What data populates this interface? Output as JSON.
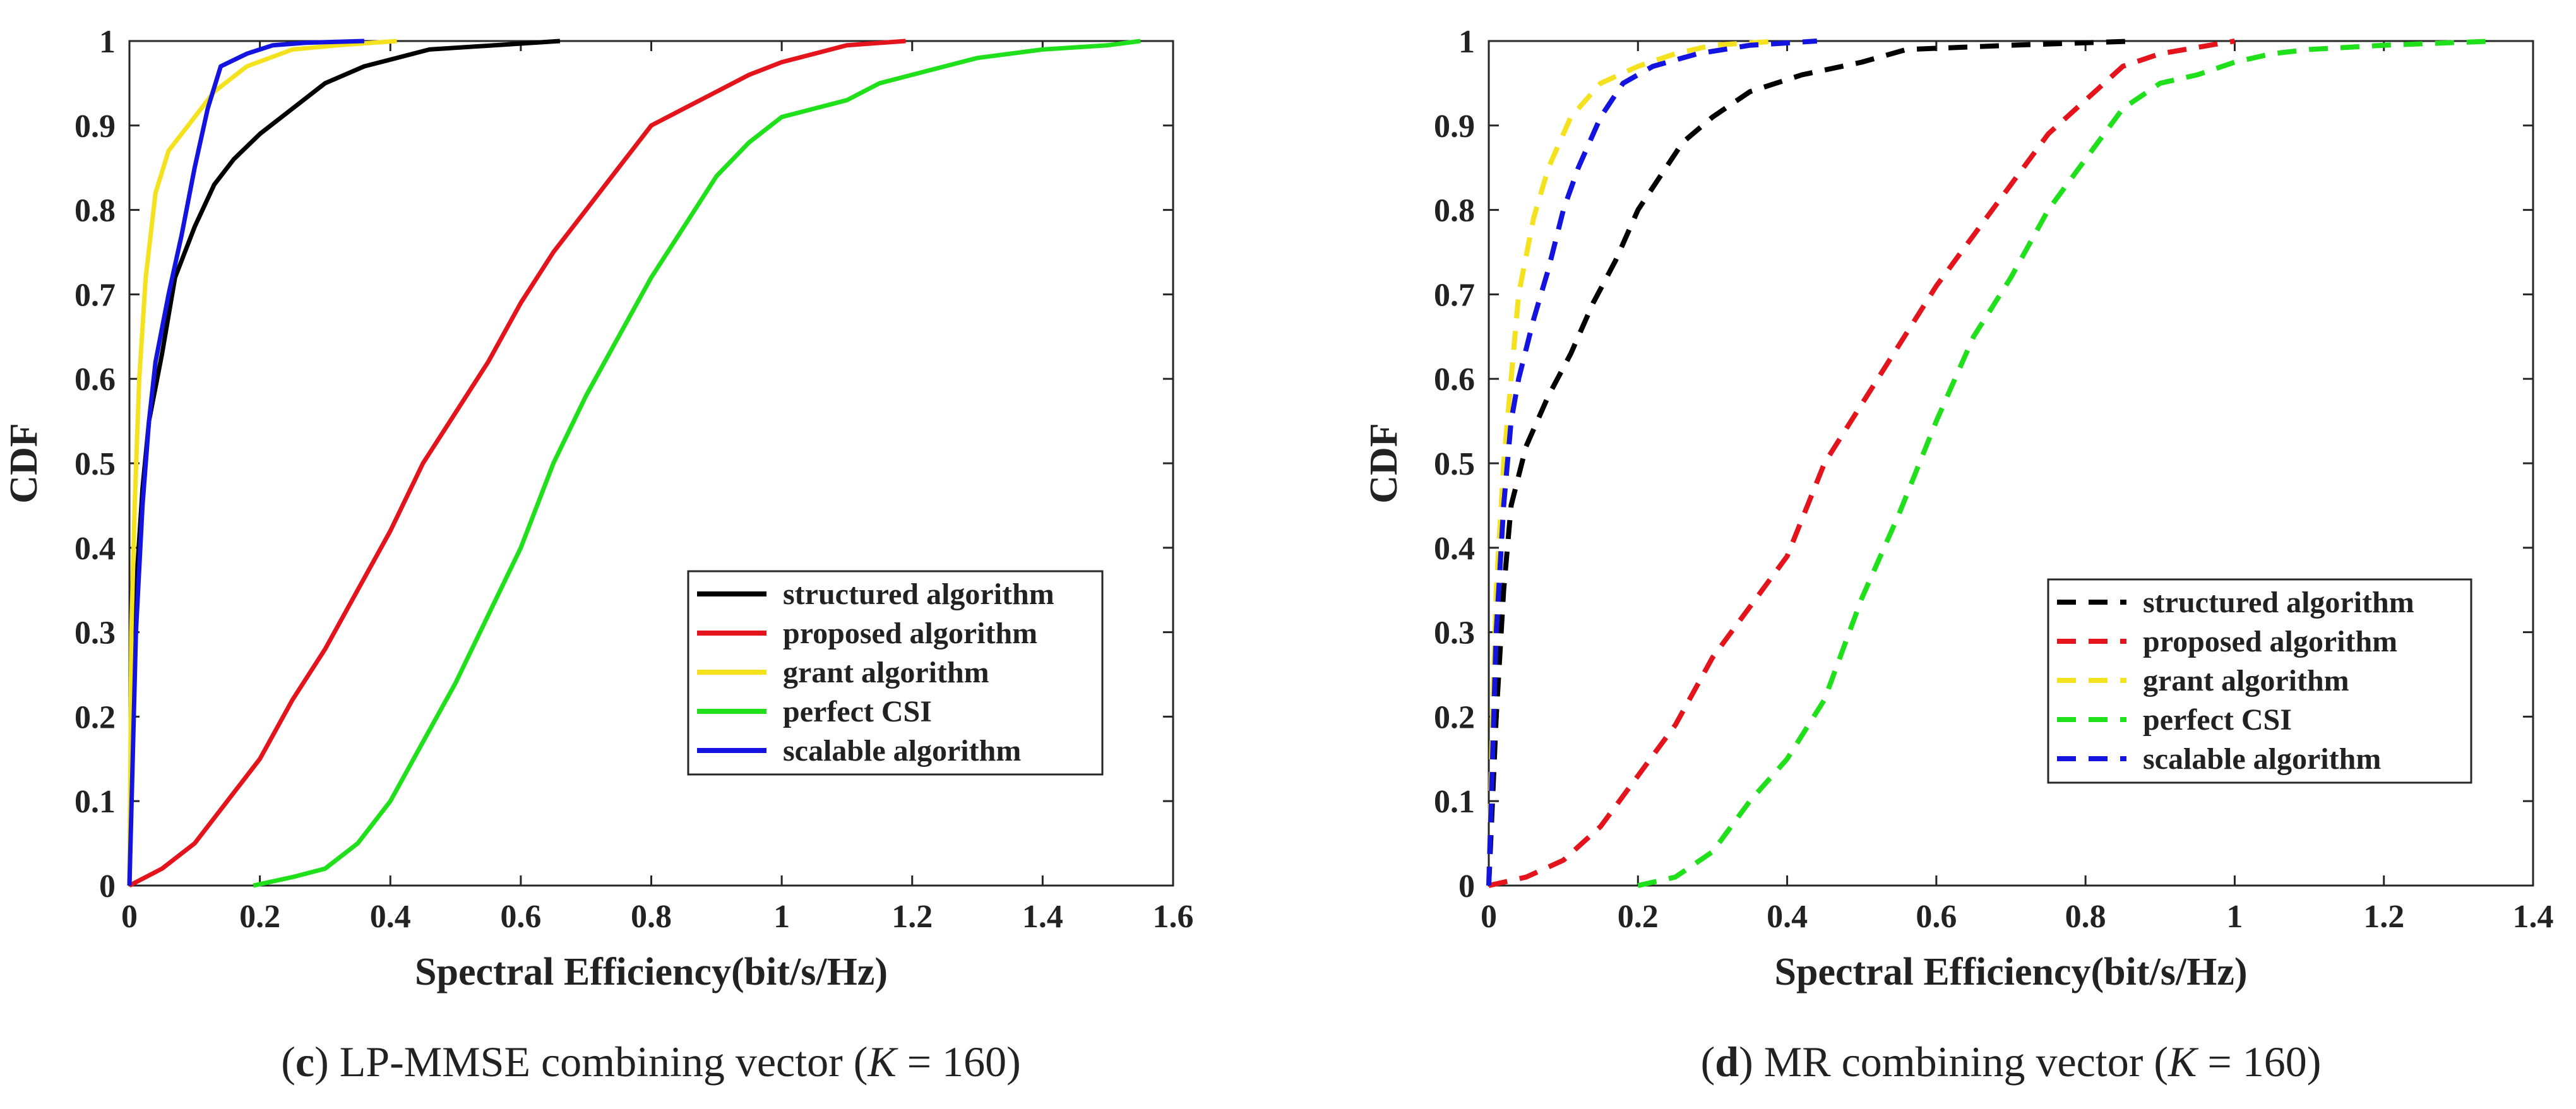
{
  "chart_data": [
    {
      "type": "line",
      "line_style": "solid",
      "caption": {
        "letter": "c",
        "text": " LP-MMSE combining vector (",
        "var": "K",
        "tail": " = 160)"
      },
      "xlabel": "Spectral Efficiency(bit/s/Hz)",
      "ylabel": "CDF",
      "xlim": [
        0,
        1.6
      ],
      "ylim": [
        0,
        1
      ],
      "xticks": [
        0,
        0.2,
        0.4,
        0.6,
        0.8,
        1,
        1.2,
        1.4,
        1.6
      ],
      "xtick_labels": [
        "0",
        "0.2",
        "0.4",
        "0.6",
        "0.8",
        "1",
        "1.2",
        "1.4",
        "1.6"
      ],
      "yticks": [
        0,
        0.1,
        0.2,
        0.3,
        0.4,
        0.5,
        0.6,
        0.7,
        0.8,
        0.9,
        1
      ],
      "ytick_labels": [
        "0",
        "0.1",
        "0.2",
        "0.3",
        "0.4",
        "0.5",
        "0.6",
        "0.7",
        "0.8",
        "0.9",
        "1"
      ],
      "legend_position": "lower-right",
      "series": [
        {
          "name": "structured algorithm",
          "color": "#000000",
          "x": [
            0,
            0.005,
            0.01,
            0.02,
            0.03,
            0.05,
            0.07,
            0.1,
            0.13,
            0.16,
            0.2,
            0.25,
            0.3,
            0.36,
            0.46,
            0.66
          ],
          "y": [
            0,
            0.2,
            0.35,
            0.47,
            0.55,
            0.63,
            0.72,
            0.78,
            0.83,
            0.86,
            0.89,
            0.92,
            0.95,
            0.97,
            0.99,
            1
          ]
        },
        {
          "name": "proposed algorithm",
          "color": "#E3141B",
          "x": [
            0,
            0.05,
            0.1,
            0.15,
            0.2,
            0.25,
            0.3,
            0.35,
            0.4,
            0.45,
            0.5,
            0.55,
            0.6,
            0.65,
            0.7,
            0.75,
            0.8,
            0.85,
            0.9,
            0.95,
            1.0,
            1.05,
            1.1,
            1.19
          ],
          "y": [
            0,
            0.02,
            0.05,
            0.1,
            0.15,
            0.22,
            0.28,
            0.35,
            0.42,
            0.5,
            0.56,
            0.62,
            0.69,
            0.75,
            0.8,
            0.85,
            0.9,
            0.92,
            0.94,
            0.96,
            0.975,
            0.985,
            0.995,
            1
          ]
        },
        {
          "name": "grant algorithm",
          "color": "#F5E21E",
          "x": [
            0,
            0.003,
            0.008,
            0.015,
            0.025,
            0.04,
            0.06,
            0.09,
            0.13,
            0.18,
            0.25,
            0.32,
            0.41
          ],
          "y": [
            0,
            0.3,
            0.45,
            0.6,
            0.72,
            0.82,
            0.87,
            0.9,
            0.94,
            0.97,
            0.99,
            0.995,
            1
          ]
        },
        {
          "name": "perfect CSI",
          "color": "#1FE01A",
          "x": [
            0.19,
            0.25,
            0.3,
            0.35,
            0.4,
            0.45,
            0.5,
            0.55,
            0.6,
            0.65,
            0.7,
            0.75,
            0.8,
            0.85,
            0.9,
            0.95,
            1.0,
            1.05,
            1.1,
            1.15,
            1.2,
            1.25,
            1.3,
            1.4,
            1.5,
            1.55
          ],
          "y": [
            0,
            0.01,
            0.02,
            0.05,
            0.1,
            0.17,
            0.24,
            0.32,
            0.4,
            0.5,
            0.58,
            0.65,
            0.72,
            0.78,
            0.84,
            0.88,
            0.91,
            0.92,
            0.93,
            0.95,
            0.96,
            0.97,
            0.98,
            0.99,
            0.995,
            1
          ]
        },
        {
          "name": "scalable algorithm",
          "color": "#1414E0",
          "x": [
            0,
            0.005,
            0.01,
            0.02,
            0.03,
            0.04,
            0.06,
            0.08,
            0.1,
            0.12,
            0.14,
            0.18,
            0.22,
            0.27,
            0.36
          ],
          "y": [
            0,
            0.15,
            0.3,
            0.45,
            0.55,
            0.62,
            0.7,
            0.77,
            0.85,
            0.92,
            0.97,
            0.985,
            0.995,
            0.998,
            1
          ]
        }
      ]
    },
    {
      "type": "line",
      "line_style": "dashed",
      "caption": {
        "letter": "d",
        "text": " MR combining vector (",
        "var": "K",
        "tail": " = 160)"
      },
      "xlabel": "Spectral Efficiency(bit/s/Hz)",
      "ylabel": "CDF",
      "xlim": [
        0,
        1.4
      ],
      "ylim": [
        0,
        1
      ],
      "xticks": [
        0,
        0.2,
        0.4,
        0.6,
        0.8,
        1,
        1.2,
        1.4
      ],
      "xtick_labels": [
        "0",
        "0.2",
        "0.4",
        "0.6",
        "0.8",
        "1",
        "1.2",
        "1.4"
      ],
      "yticks": [
        0,
        0.1,
        0.2,
        0.3,
        0.4,
        0.5,
        0.6,
        0.7,
        0.8,
        0.9,
        1
      ],
      "ytick_labels": [
        "0",
        "0.1",
        "0.2",
        "0.3",
        "0.4",
        "0.5",
        "0.6",
        "0.7",
        "0.8",
        "0.9",
        "1"
      ],
      "legend_position": "lower-right",
      "series": [
        {
          "name": "structured algorithm",
          "color": "#000000",
          "x": [
            0,
            0.01,
            0.02,
            0.03,
            0.05,
            0.08,
            0.11,
            0.14,
            0.17,
            0.2,
            0.23,
            0.26,
            0.3,
            0.35,
            0.42,
            0.5,
            0.56,
            0.7,
            0.87
          ],
          "y": [
            0,
            0.2,
            0.35,
            0.45,
            0.52,
            0.58,
            0.63,
            0.69,
            0.74,
            0.8,
            0.84,
            0.88,
            0.91,
            0.94,
            0.96,
            0.975,
            0.99,
            0.995,
            1
          ]
        },
        {
          "name": "proposed algorithm",
          "color": "#E3141B",
          "x": [
            0,
            0.05,
            0.1,
            0.15,
            0.2,
            0.25,
            0.3,
            0.35,
            0.4,
            0.45,
            0.5,
            0.55,
            0.6,
            0.65,
            0.7,
            0.75,
            0.8,
            0.85,
            0.9,
            1.0
          ],
          "y": [
            0,
            0.01,
            0.03,
            0.07,
            0.13,
            0.19,
            0.27,
            0.33,
            0.39,
            0.5,
            0.57,
            0.64,
            0.71,
            0.77,
            0.83,
            0.89,
            0.93,
            0.97,
            0.985,
            1
          ]
        },
        {
          "name": "grant algorithm",
          "color": "#F5E21E",
          "x": [
            0,
            0.005,
            0.01,
            0.02,
            0.03,
            0.04,
            0.06,
            0.08,
            0.11,
            0.15,
            0.2,
            0.25,
            0.3,
            0.39
          ],
          "y": [
            0,
            0.2,
            0.35,
            0.5,
            0.6,
            0.7,
            0.79,
            0.85,
            0.91,
            0.95,
            0.97,
            0.985,
            0.995,
            1
          ]
        },
        {
          "name": "perfect CSI",
          "color": "#1FE01A",
          "x": [
            0.2,
            0.25,
            0.3,
            0.35,
            0.4,
            0.45,
            0.5,
            0.55,
            0.6,
            0.65,
            0.7,
            0.75,
            0.8,
            0.85,
            0.9,
            0.95,
            1.0,
            1.05,
            1.1,
            1.2,
            1.35
          ],
          "y": [
            0,
            0.01,
            0.04,
            0.1,
            0.15,
            0.22,
            0.34,
            0.44,
            0.55,
            0.65,
            0.72,
            0.8,
            0.86,
            0.92,
            0.95,
            0.96,
            0.975,
            0.985,
            0.99,
            0.995,
            1
          ]
        },
        {
          "name": "scalable algorithm",
          "color": "#1414E0",
          "x": [
            0,
            0.005,
            0.01,
            0.02,
            0.03,
            0.04,
            0.06,
            0.08,
            0.1,
            0.12,
            0.15,
            0.18,
            0.22,
            0.28,
            0.35,
            0.44
          ],
          "y": [
            0,
            0.15,
            0.3,
            0.45,
            0.55,
            0.6,
            0.67,
            0.73,
            0.8,
            0.85,
            0.91,
            0.95,
            0.97,
            0.985,
            0.995,
            1
          ]
        }
      ]
    }
  ]
}
